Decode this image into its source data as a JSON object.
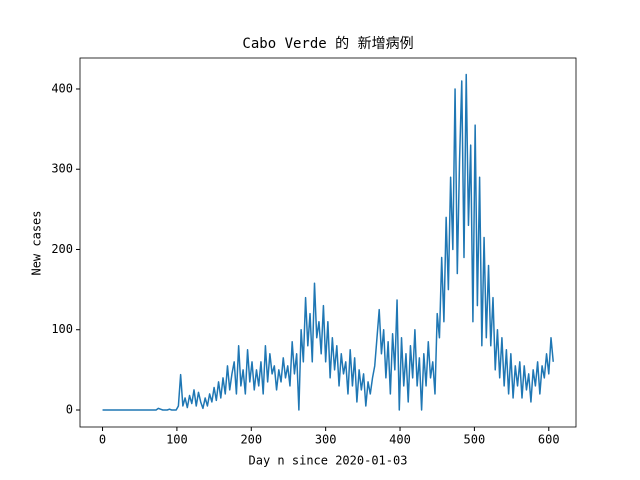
{
  "chart_data": {
    "type": "line",
    "title": "Cabo Verde 的 新增病例",
    "xlabel": "Day n since 2020-01-03",
    "ylabel": "New cases",
    "xlim": [
      -30.3,
      636.6
    ],
    "ylim": [
      -21.2,
      438.6
    ],
    "xticks": [
      0,
      100,
      200,
      300,
      400,
      500,
      600
    ],
    "yticks": [
      0,
      100,
      200,
      300,
      400
    ],
    "x": [
      0,
      3,
      6,
      9,
      12,
      15,
      18,
      21,
      24,
      27,
      30,
      33,
      36,
      39,
      42,
      45,
      48,
      51,
      54,
      57,
      60,
      63,
      66,
      69,
      72,
      75,
      78,
      81,
      84,
      87,
      90,
      93,
      96,
      99,
      102,
      105,
      108,
      111,
      114,
      117,
      120,
      123,
      126,
      129,
      132,
      135,
      138,
      141,
      144,
      147,
      150,
      153,
      156,
      159,
      162,
      165,
      168,
      171,
      174,
      177,
      180,
      183,
      186,
      189,
      192,
      195,
      198,
      201,
      204,
      207,
      210,
      213,
      216,
      219,
      222,
      225,
      228,
      231,
      234,
      237,
      240,
      243,
      246,
      249,
      252,
      255,
      258,
      261,
      264,
      267,
      270,
      273,
      276,
      279,
      282,
      285,
      288,
      291,
      294,
      297,
      300,
      303,
      306,
      309,
      312,
      315,
      318,
      321,
      324,
      327,
      330,
      333,
      336,
      339,
      342,
      345,
      348,
      351,
      354,
      357,
      360,
      363,
      366,
      369,
      372,
      375,
      378,
      381,
      384,
      387,
      390,
      393,
      396,
      399,
      402,
      405,
      408,
      411,
      414,
      417,
      420,
      423,
      426,
      429,
      432,
      435,
      438,
      441,
      444,
      447,
      450,
      453,
      456,
      459,
      462,
      465,
      468,
      471,
      474,
      477,
      480,
      483,
      486,
      489,
      492,
      495,
      498,
      501,
      504,
      507,
      510,
      513,
      516,
      519,
      522,
      525,
      528,
      531,
      534,
      537,
      540,
      543,
      546,
      549,
      552,
      555,
      558,
      561,
      564,
      567,
      570,
      573,
      576,
      579,
      582,
      585,
      588,
      591,
      594,
      597,
      600,
      603,
      606
    ],
    "series": [
      {
        "color": "#1f77b4",
        "values": [
          0,
          0,
          0,
          0,
          0,
          0,
          0,
          0,
          0,
          0,
          0,
          0,
          0,
          0,
          0,
          0,
          0,
          0,
          0,
          0,
          0,
          0,
          0,
          0,
          0,
          2,
          1,
          0,
          0,
          0,
          1,
          0,
          0,
          0,
          5,
          44,
          5,
          15,
          3,
          18,
          8,
          25,
          5,
          22,
          10,
          2,
          15,
          5,
          20,
          10,
          28,
          12,
          35,
          15,
          40,
          20,
          55,
          25,
          45,
          60,
          20,
          80,
          30,
          50,
          20,
          75,
          35,
          60,
          25,
          50,
          30,
          60,
          20,
          80,
          35,
          70,
          45,
          55,
          25,
          50,
          35,
          65,
          40,
          55,
          30,
          85,
          45,
          70,
          0,
          100,
          60,
          140,
          80,
          120,
          60,
          158,
          90,
          110,
          70,
          130,
          60,
          110,
          40,
          90,
          50,
          80,
          30,
          70,
          45,
          60,
          20,
          75,
          30,
          65,
          10,
          50,
          25,
          45,
          5,
          35,
          20,
          40,
          55,
          90,
          125,
          70,
          100,
          40,
          85,
          20,
          95,
          50,
          137,
          0,
          90,
          30,
          70,
          10,
          80,
          40,
          100,
          30,
          65,
          0,
          70,
          30,
          85,
          40,
          60,
          20,
          120,
          90,
          190,
          110,
          240,
          150,
          290,
          200,
          400,
          170,
          310,
          410,
          190,
          418,
          230,
          330,
          110,
          355,
          130,
          290,
          80,
          215,
          90,
          180,
          80,
          140,
          50,
          100,
          40,
          90,
          30,
          75,
          20,
          70,
          15,
          55,
          30,
          60,
          15,
          55,
          25,
          45,
          10,
          50,
          30,
          60,
          20,
          55,
          40,
          70,
          45,
          90,
          60
        ]
      }
    ]
  }
}
